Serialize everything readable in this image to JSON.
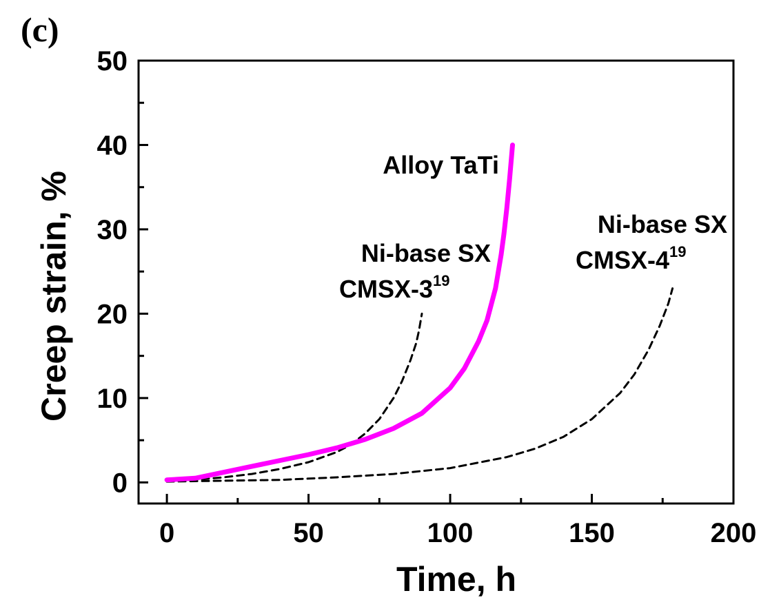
{
  "panel_label": "(c)",
  "chart_data": {
    "type": "line",
    "xlabel": "Time, h",
    "ylabel": "Creep strain, %",
    "xlim": [
      -10,
      200
    ],
    "ylim": [
      -2.5,
      50
    ],
    "x_ticks": [
      0,
      50,
      100,
      150,
      200
    ],
    "y_ticks": [
      0,
      10,
      20,
      30,
      40,
      50
    ],
    "grid": false,
    "series": [
      {
        "name": "Alloy TaTi",
        "style": "solid",
        "color": "#ff00ff",
        "x": [
          0,
          10,
          20,
          30,
          40,
          50,
          60,
          70,
          80,
          90,
          100,
          105,
          110,
          113,
          116,
          118,
          119,
          120,
          121,
          121.5,
          122
        ],
        "y": [
          0.3,
          0.5,
          1.2,
          1.9,
          2.6,
          3.3,
          4.1,
          5.1,
          6.4,
          8.2,
          11.2,
          13.5,
          16.7,
          19.2,
          23,
          27,
          29.5,
          32.5,
          36,
          38,
          40
        ]
      },
      {
        "name": "Ni-base SX CMSX-3",
        "label_line1": "Ni-base SX",
        "label_line2": "CMSX-3",
        "label_sup": "19",
        "style": "dashed",
        "color": "#000000",
        "x": [
          0,
          10,
          20,
          30,
          40,
          50,
          60,
          65,
          70,
          75,
          80,
          83,
          86,
          88,
          89,
          90
        ],
        "y": [
          0.2,
          0.3,
          0.6,
          1.0,
          1.6,
          2.4,
          3.6,
          4.5,
          5.8,
          7.5,
          10.0,
          12.0,
          14.5,
          16.5,
          18,
          20
        ]
      },
      {
        "name": "Ni-base SX CMSX-4",
        "label_line1": "Ni-base SX",
        "label_line2": "CMSX-4",
        "label_sup": "19",
        "style": "dashed",
        "color": "#000000",
        "x": [
          0,
          20,
          40,
          60,
          80,
          100,
          120,
          130,
          140,
          150,
          160,
          165,
          170,
          174,
          177,
          178.5
        ],
        "y": [
          0.1,
          0.2,
          0.3,
          0.6,
          1.0,
          1.7,
          3.0,
          4.0,
          5.4,
          7.5,
          10.6,
          12.8,
          15.7,
          18.6,
          21.2,
          23
        ]
      }
    ]
  }
}
